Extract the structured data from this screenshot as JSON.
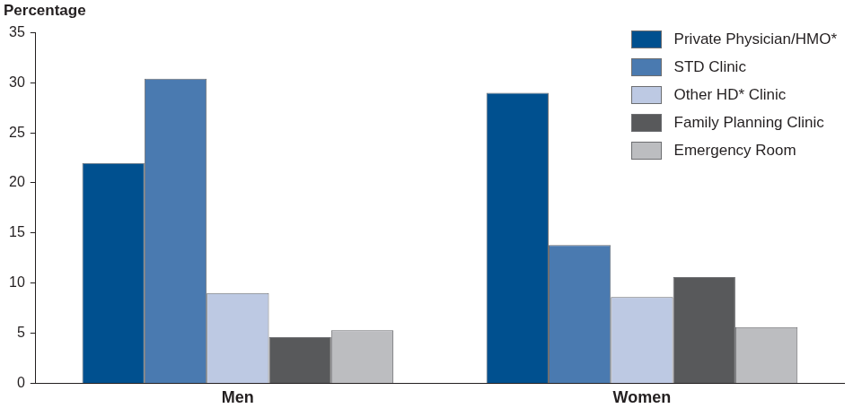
{
  "chart_data": {
    "type": "bar",
    "ylabel": "Percentage",
    "categories": [
      "Men",
      "Women"
    ],
    "series": [
      {
        "name": "Private Physician/HMO*",
        "color": "#00508f",
        "values": [
          22.0,
          29.0
        ]
      },
      {
        "name": "STD Clinic",
        "color": "#4a7ab0",
        "values": [
          30.4,
          13.8
        ]
      },
      {
        "name": "Other HD* Clinic",
        "color": "#bdc9e3",
        "values": [
          9.0,
          8.6
        ]
      },
      {
        "name": "Family Planning Clinic",
        "color": "#58595b",
        "values": [
          4.6,
          10.6
        ]
      },
      {
        "name": "Emergency Room",
        "color": "#bcbdc0",
        "values": [
          5.3,
          5.6
        ]
      }
    ],
    "ylim": [
      0,
      35
    ],
    "yticks": [
      0,
      5,
      10,
      15,
      20,
      25,
      30,
      35
    ],
    "grid": false,
    "legend": "upper right"
  }
}
